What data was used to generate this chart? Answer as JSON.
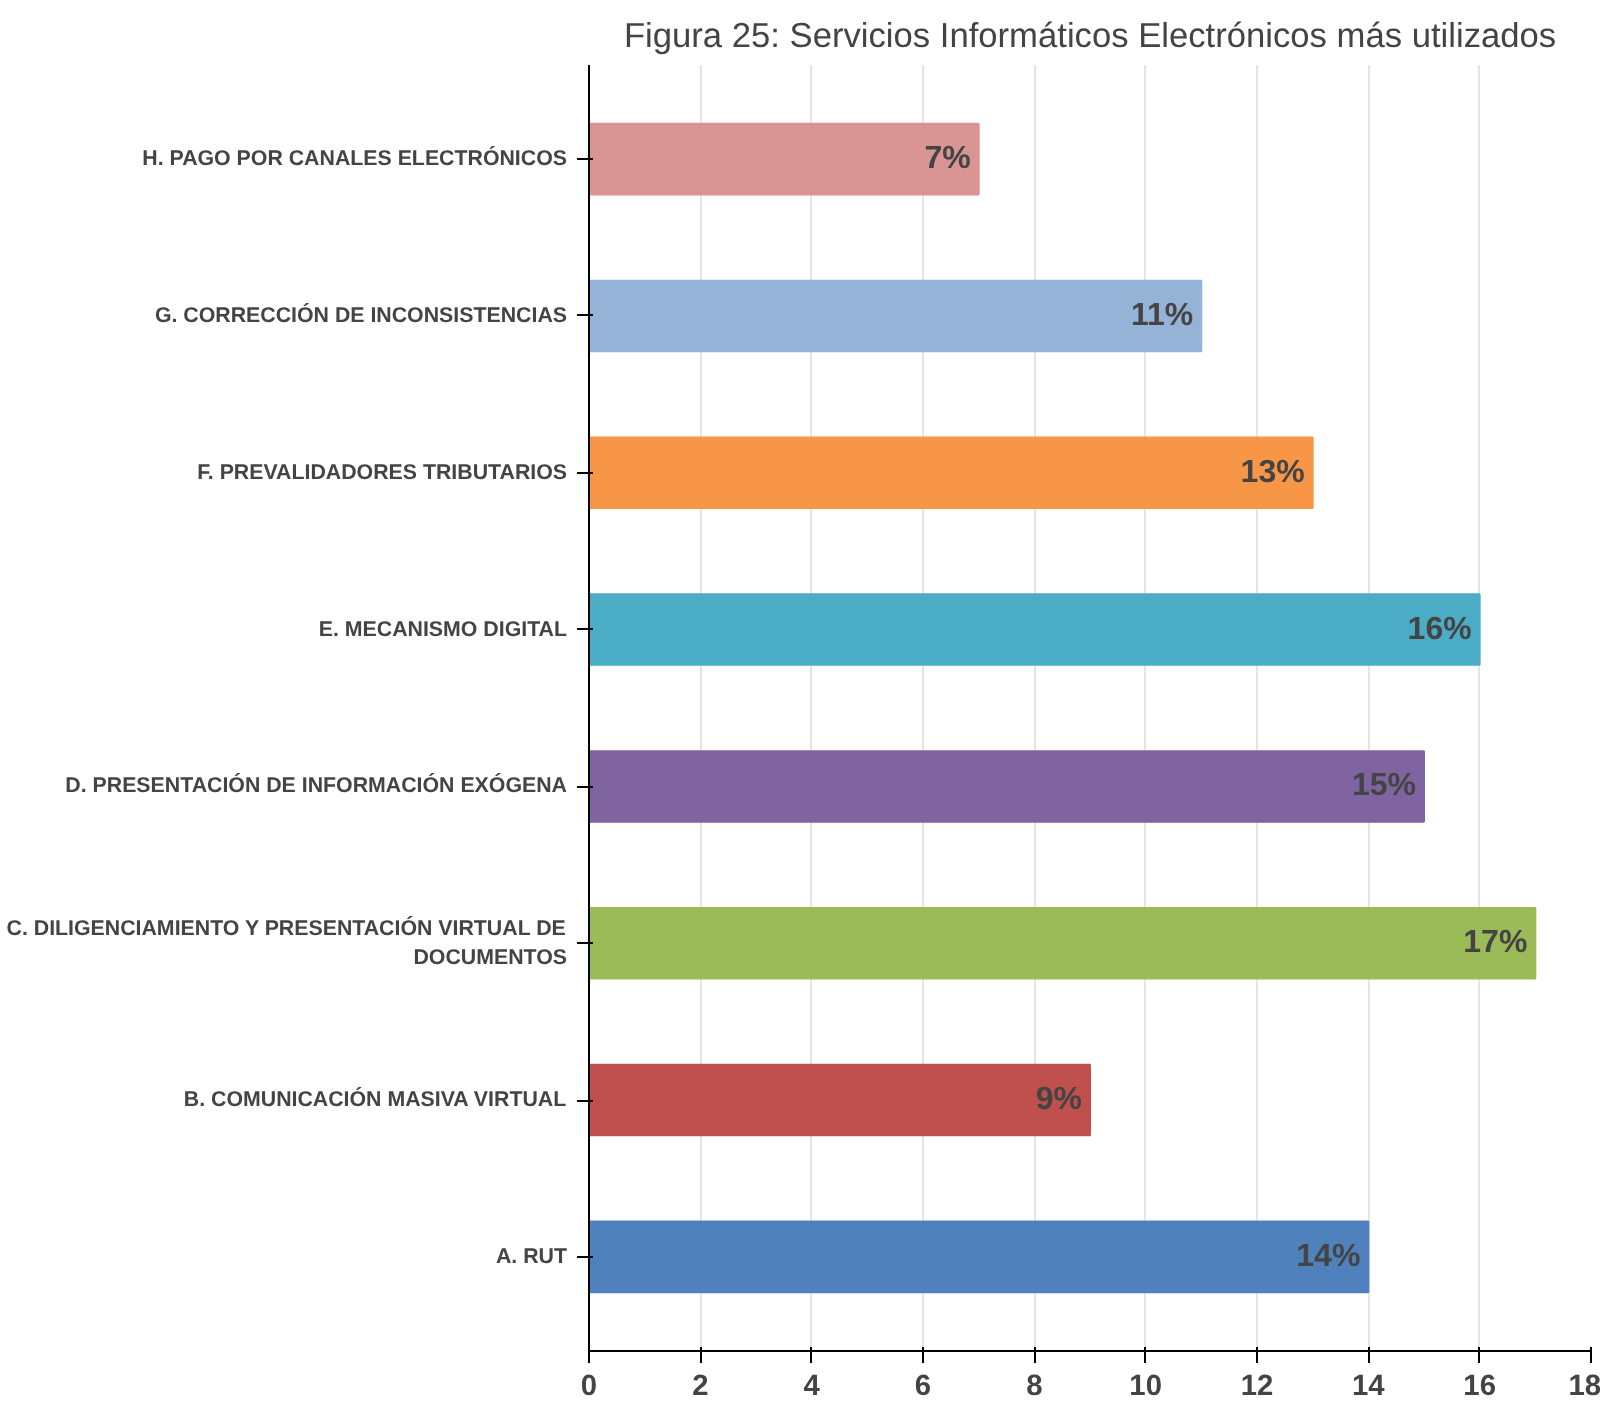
{
  "chart_data": {
    "type": "bar",
    "orientation": "horizontal",
    "title": "Figura 25: Servicios Informáticos Electrónicos más utilizados",
    "categories": [
      "H. PAGO POR CANALES ELECTRÓNICOS",
      "G. CORRECCIÓN DE INCONSISTENCIAS",
      "F. PREVALIDADORES TRIBUTARIOS",
      "E. MECANISMO DIGITAL",
      "D. PRESENTACIÓN DE INFORMACIÓN EXÓGENA",
      "C. DILIGENCIAMIENTO Y PRESENTACIÓN VIRTUAL DE DOCUMENTOS",
      "B. COMUNICACIÓN MASIVA VIRTUAL",
      "A. RUT"
    ],
    "values": [
      7,
      11,
      13,
      16,
      15,
      17,
      9,
      14
    ],
    "value_labels": [
      "7%",
      "11%",
      "13%",
      "16%",
      "15%",
      "17%",
      "9%",
      "14%"
    ],
    "colors": [
      "#d99594",
      "#95b3d7",
      "#f79646",
      "#4bacc6",
      "#8064a2",
      "#9bbb59",
      "#c0504d",
      "#4f81bd"
    ],
    "xlim": [
      0,
      18
    ],
    "xticks": [
      0,
      2,
      4,
      6,
      8,
      10,
      12,
      14,
      16,
      18
    ],
    "grid": "x"
  }
}
